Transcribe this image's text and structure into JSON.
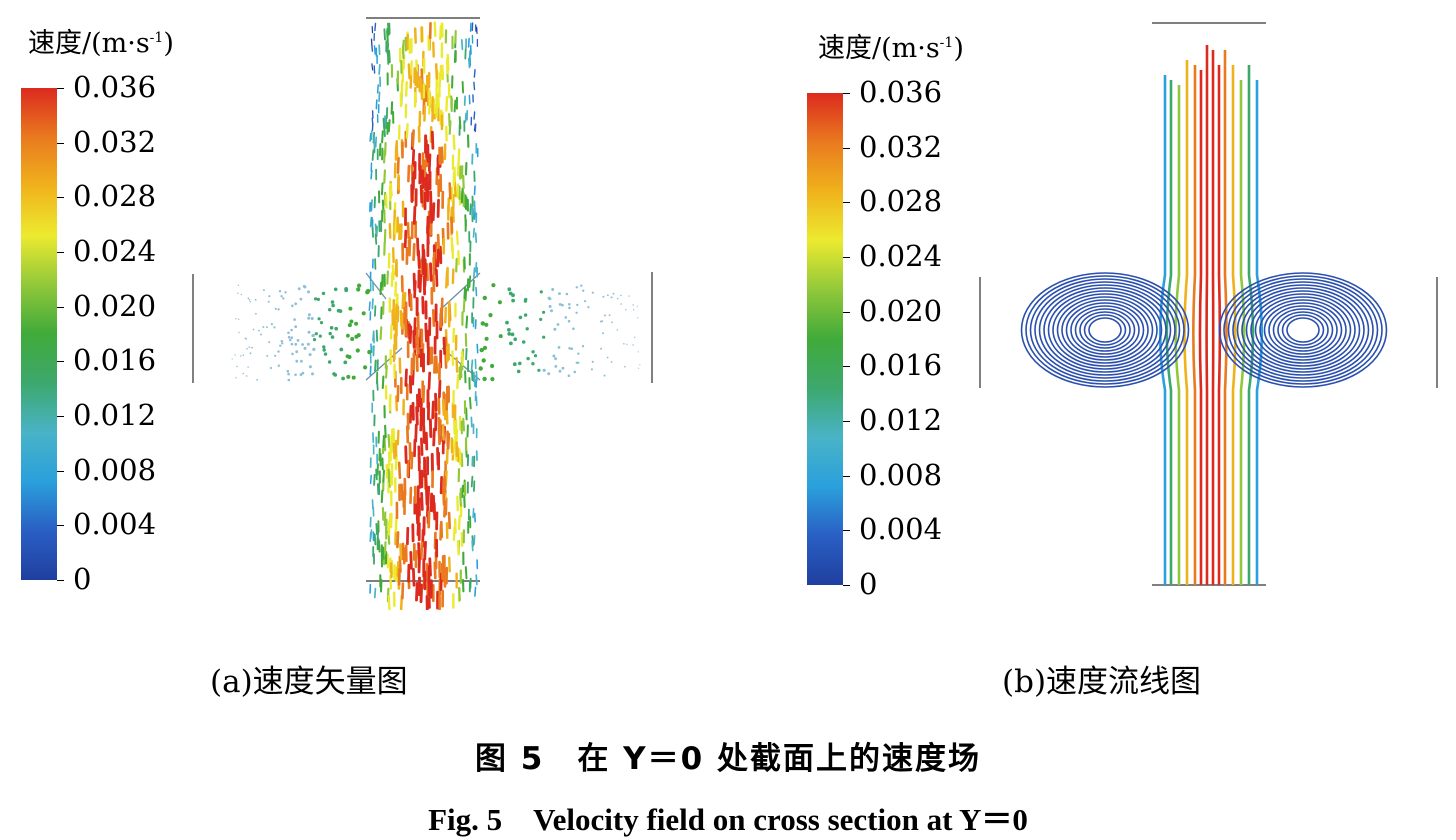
{
  "colorbar_title": "速度/(m·s",
  "colorbar_title_exp": "-1",
  "colorbar_title_close": ")",
  "colorbar_ticks": [
    "0.036",
    "0.032",
    "0.028",
    "0.024",
    "0.020",
    "0.016",
    "0.012",
    "0.008",
    "0.004",
    "0"
  ],
  "panel_a_caption": "(a)速度矢量图",
  "panel_b_caption": "(b)速度流线图",
  "figure_caption_cn": "图 5　在 Y＝0 处截面上的速度场",
  "figure_caption_en": "Fig. 5　Velocity field on cross section at Y＝0",
  "colors": {
    "low": "#1f3f9f",
    "cyan": "#2aa0dc",
    "green": "#40aa3a",
    "yellow": "#ecea2f",
    "orange": "#e97a1f",
    "high": "#dc2a1f"
  }
}
